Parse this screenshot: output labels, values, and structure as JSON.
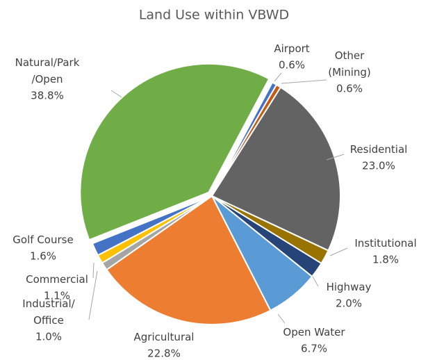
{
  "chart_data": {
    "type": "pie",
    "title": "Land Use within VBWD",
    "categories": [
      "Airport",
      "Other\n(Mining)",
      "Residential",
      "Institutional",
      "Highway",
      "Open Water",
      "Agricultural",
      "Industrial/\nOffice",
      "Commercial",
      "Golf Course",
      "Natural/Park\n/Open"
    ],
    "values": [
      0.6,
      0.6,
      23.0,
      1.8,
      2.0,
      6.7,
      22.8,
      1.0,
      1.1,
      1.6,
      38.8
    ],
    "value_labels": [
      "0.6%",
      "0.6%",
      "23.0%",
      "1.8%",
      "2.0%",
      "6.7%",
      "22.8%",
      "1.0%",
      "1.1%",
      "1.6%",
      "38.8%"
    ],
    "colors": [
      "#4472c4",
      "#c55a11",
      "#636363",
      "#997300",
      "#264478",
      "#5b9bd5",
      "#ed7d31",
      "#a5a5a5",
      "#ffc000",
      "#4472c4",
      "#70ad47"
    ]
  }
}
